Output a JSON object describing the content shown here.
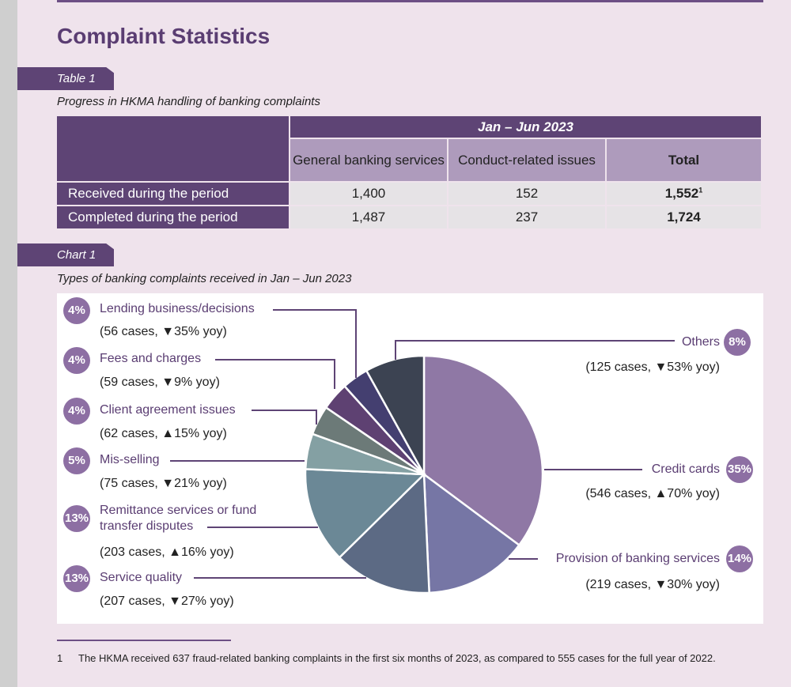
{
  "title": "Complaint Statistics",
  "table1": {
    "tag": "Table 1",
    "caption": "Progress in HKMA handling of banking complaints",
    "period": "Jan – Jun 2023",
    "columns": [
      "General banking services",
      "Conduct-related issues",
      "Total"
    ],
    "rows": [
      {
        "label": "Received during the period",
        "values": [
          "1,400",
          "152",
          "1,552"
        ],
        "footnote_ref": "1"
      },
      {
        "label": "Completed during the period",
        "values": [
          "1,487",
          "237",
          "1,724"
        ]
      }
    ]
  },
  "chart1": {
    "tag": "Chart 1",
    "caption": "Types of banking complaints received in Jan – Jun 2023"
  },
  "chart_data": {
    "type": "pie",
    "title": "Types of banking complaints received in Jan – Jun 2023",
    "slices": [
      {
        "label": "Credit cards",
        "value": 546,
        "percent": "35%",
        "detail": "(546 cases, ▲70% yoy)",
        "color": "#8f78a5"
      },
      {
        "label": "Provision of banking services",
        "value": 219,
        "percent": "14%",
        "detail": "(219 cases, ▼30% yoy)",
        "color": "#7676a5"
      },
      {
        "label": "Service quality",
        "value": 207,
        "percent": "13%",
        "detail": "(207 cases, ▼27% yoy)",
        "color": "#5c6a84"
      },
      {
        "label": "Remittance services or fund transfer disputes",
        "value": 203,
        "percent": "13%",
        "detail": "(203 cases, ▲16% yoy)",
        "color": "#6b8896"
      },
      {
        "label": "Mis-selling",
        "value": 75,
        "percent": "5%",
        "detail": "(75 cases, ▼21% yoy)",
        "color": "#84a0a3"
      },
      {
        "label": "Client agreement issues",
        "value": 62,
        "percent": "4%",
        "detail": "(62 cases, ▲15% yoy)",
        "color": "#6c7a78"
      },
      {
        "label": "Fees and charges",
        "value": 59,
        "percent": "4%",
        "detail": "(59 cases, ▼9% yoy)",
        "color": "#5e4172"
      },
      {
        "label": "Lending business/decisions",
        "value": 56,
        "percent": "4%",
        "detail": "(56 cases, ▼35% yoy)",
        "color": "#443f70"
      },
      {
        "label": "Others",
        "value": 125,
        "percent": "8%",
        "detail": "(125 cases, ▼53% yoy)",
        "color": "#3c4352"
      }
    ],
    "leader_color": "#5e4475"
  },
  "footnote": {
    "number": "1",
    "text": "The HKMA received 637 fraud-related banking complaints in the first six months of 2023, as compared to 555 cases for the full year of 2022."
  }
}
